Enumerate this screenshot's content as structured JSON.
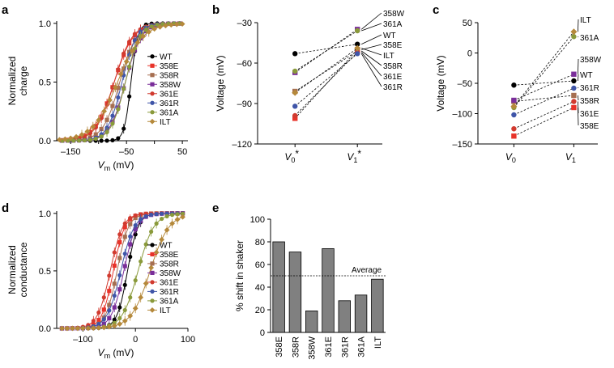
{
  "colors": {
    "WT": "#000000",
    "358E": "#e8332a",
    "358R": "#a66f51",
    "358W": "#7a2e9a",
    "361E": "#d13a2f",
    "361R": "#3f55a8",
    "361A": "#8a9a3b",
    "ILT": "#b5893b"
  },
  "chart_data": [
    {
      "panel": "a",
      "type": "line",
      "title": "",
      "xlabel_main": "V",
      "xlabel_sub": "m",
      "xlabel_unit": " (mV)",
      "ylabel": [
        "Normalized",
        "charge"
      ],
      "xlim": [
        -175,
        60
      ],
      "ylim": [
        0,
        1.02
      ],
      "xticks": [
        -150,
        -100,
        -50,
        0,
        50
      ],
      "xtick_labels": [
        "–150",
        "",
        "–50",
        "",
        "50"
      ],
      "yticks": [
        0,
        0.5,
        1
      ],
      "ytick_labels": [
        "0.0",
        "0.5",
        "1.0"
      ],
      "legend": [
        "WT",
        "358E",
        "358R",
        "358W",
        "361E",
        "361R",
        "361A",
        "ILT"
      ],
      "legend_position": "center-right",
      "series": [
        {
          "name": "WT",
          "v_half": -42,
          "slope": 6,
          "x_start": -115,
          "x_end": 50
        },
        {
          "name": "358E",
          "v_half": -72,
          "slope": 17,
          "x_start": -165,
          "x_end": 50
        },
        {
          "name": "358R",
          "v_half": -62,
          "slope": 15,
          "x_start": -165,
          "x_end": 50
        },
        {
          "name": "358W",
          "v_half": -52,
          "slope": 14,
          "x_start": -165,
          "x_end": 50
        },
        {
          "name": "361E",
          "v_half": -72,
          "slope": 16,
          "x_start": -165,
          "x_end": 50
        },
        {
          "name": "361R",
          "v_half": -58,
          "slope": 13,
          "x_start": -165,
          "x_end": 50
        },
        {
          "name": "361A",
          "v_half": -52,
          "slope": 13,
          "x_start": -165,
          "x_end": 50
        },
        {
          "name": "ILT",
          "v_half": -66,
          "slope": 22,
          "x_start": -170,
          "x_end": 50
        }
      ]
    },
    {
      "panel": "b",
      "type": "scatter",
      "title": "",
      "xlabel": "",
      "ylabel": "Voltage (mV)",
      "categories": [
        "V0*",
        "V1*"
      ],
      "category_main": [
        "V",
        "V"
      ],
      "category_sub": [
        "0",
        "1"
      ],
      "category_sup": [
        "*",
        "*"
      ],
      "ylim": [
        -120,
        -30
      ],
      "yticks": [
        -120,
        -90,
        -60,
        -30
      ],
      "ytick_labels": [
        "–120",
        "–90",
        "–60",
        "–30"
      ],
      "series": [
        {
          "name": "WT",
          "values": [
            -53,
            -46
          ]
        },
        {
          "name": "358E",
          "values": [
            -101,
            -50
          ]
        },
        {
          "name": "358R",
          "values": [
            -81,
            -51
          ]
        },
        {
          "name": "358W",
          "values": [
            -67,
            -35
          ]
        },
        {
          "name": "361E",
          "values": [
            -99,
            -52
          ]
        },
        {
          "name": "361R",
          "values": [
            -92,
            -53
          ]
        },
        {
          "name": "361A",
          "values": [
            -66,
            -36
          ]
        },
        {
          "name": "ILT",
          "values": [
            -82,
            -49
          ]
        }
      ],
      "labels": [
        "358W",
        "361A",
        "WT",
        "358E",
        "ILT",
        "358R",
        "361E",
        "361R"
      ]
    },
    {
      "panel": "c",
      "type": "scatter",
      "title": "",
      "xlabel": "",
      "ylabel": "Voltage (mV)",
      "categories": [
        "V0",
        "V1"
      ],
      "category_main": [
        "V",
        "V"
      ],
      "category_sub": [
        "0",
        "1"
      ],
      "ylim": [
        -150,
        50
      ],
      "yticks": [
        -150,
        -100,
        -50,
        0,
        50
      ],
      "ytick_labels": [
        "–150",
        "–100",
        "–50",
        "0",
        "50"
      ],
      "series": [
        {
          "name": "WT",
          "values": [
            -53,
            -46
          ]
        },
        {
          "name": "358E",
          "values": [
            -137,
            -90
          ]
        },
        {
          "name": "358R",
          "values": [
            -80,
            -70
          ]
        },
        {
          "name": "358W",
          "values": [
            -78,
            -35
          ]
        },
        {
          "name": "361E",
          "values": [
            -125,
            -80
          ]
        },
        {
          "name": "361R",
          "values": [
            -102,
            -58
          ]
        },
        {
          "name": "361A",
          "values": [
            -90,
            27
          ]
        },
        {
          "name": "ILT",
          "values": [
            -88,
            35
          ]
        }
      ],
      "labels": [
        "ILT",
        "361A",
        "358W",
        "WT",
        "361R",
        "358R",
        "361E",
        "358E"
      ]
    },
    {
      "panel": "d",
      "type": "line",
      "title": "",
      "xlabel_main": "V",
      "xlabel_sub": "m",
      "xlabel_unit": " (mV)",
      "ylabel": [
        "Normalized",
        "conductance"
      ],
      "xlim": [
        -150,
        100
      ],
      "ylim": [
        0,
        1.02
      ],
      "xticks": [
        -100,
        0,
        100
      ],
      "xtick_labels": [
        "–100",
        "0",
        "100"
      ],
      "yticks": [
        0,
        0.5,
        1
      ],
      "ytick_labels": [
        "0.0",
        "0.5",
        "1.0"
      ],
      "legend": [
        "WT",
        "358E",
        "358R",
        "358W",
        "361E",
        "361R",
        "361A",
        "ILT"
      ],
      "legend_position": "center-right",
      "series": [
        {
          "name": "WT",
          "v_half": -15,
          "slope": 10,
          "x_start": -100,
          "x_end": 90
        },
        {
          "name": "358E",
          "v_half": -42,
          "slope": 11,
          "x_start": -140,
          "x_end": 90
        },
        {
          "name": "358R",
          "v_half": -35,
          "slope": 11,
          "x_start": -140,
          "x_end": 90
        },
        {
          "name": "358W",
          "v_half": -22,
          "slope": 12,
          "x_start": -140,
          "x_end": 90
        },
        {
          "name": "361E",
          "v_half": -48,
          "slope": 12,
          "x_start": -140,
          "x_end": 90
        },
        {
          "name": "361R",
          "v_half": -28,
          "slope": 13,
          "x_start": -140,
          "x_end": 90
        },
        {
          "name": "361A",
          "v_half": 5,
          "slope": 15,
          "x_start": -140,
          "x_end": 90
        },
        {
          "name": "ILT",
          "v_half": 28,
          "slope": 18,
          "x_start": -140,
          "x_end": 90
        }
      ]
    },
    {
      "panel": "e",
      "type": "bar",
      "title": "",
      "xlabel": "",
      "ylabel": "% shift in shaker",
      "categories": [
        "358E",
        "358R",
        "358W",
        "361E",
        "361R",
        "361A",
        "ILT"
      ],
      "values": [
        80,
        71,
        19,
        74,
        28,
        33,
        47
      ],
      "ylim": [
        0,
        100
      ],
      "yticks": [
        0,
        20,
        40,
        60,
        80,
        100
      ],
      "ytick_labels": [
        "0",
        "20",
        "40",
        "60",
        "80",
        "100"
      ],
      "average": 50,
      "average_label": "Average"
    }
  ]
}
